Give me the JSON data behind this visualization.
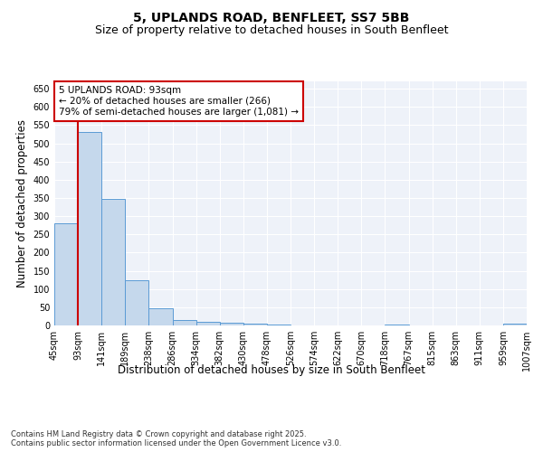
{
  "title": "5, UPLANDS ROAD, BENFLEET, SS7 5BB",
  "subtitle": "Size of property relative to detached houses in South Benfleet",
  "xlabel": "Distribution of detached houses by size in South Benfleet",
  "ylabel": "Number of detached properties",
  "bar_values": [
    280,
    530,
    348,
    125,
    48,
    15,
    10,
    8,
    5,
    3,
    0,
    0,
    0,
    0,
    3,
    0,
    0,
    0,
    0,
    4
  ],
  "bar_color": "#c5d8ec",
  "bar_edge_color": "#5b9bd5",
  "categories": [
    "45sqm",
    "93sqm",
    "141sqm",
    "189sqm",
    "238sqm",
    "286sqm",
    "334sqm",
    "382sqm",
    "430sqm",
    "478sqm",
    "526sqm",
    "574sqm",
    "622sqm",
    "670sqm",
    "718sqm",
    "767sqm",
    "815sqm",
    "863sqm",
    "911sqm",
    "959sqm",
    "1007sqm"
  ],
  "ylim": [
    0,
    670
  ],
  "yticks": [
    0,
    50,
    100,
    150,
    200,
    250,
    300,
    350,
    400,
    450,
    500,
    550,
    600,
    650
  ],
  "property_line_x": 0.5,
  "annotation_text": "5 UPLANDS ROAD: 93sqm\n← 20% of detached houses are smaller (266)\n79% of semi-detached houses are larger (1,081) →",
  "annotation_box_color": "#ffffff",
  "annotation_box_edge": "#cc0000",
  "line_color": "#cc0000",
  "background_color": "#eef2f9",
  "grid_color": "#ffffff",
  "footer": "Contains HM Land Registry data © Crown copyright and database right 2025.\nContains public sector information licensed under the Open Government Licence v3.0.",
  "title_fontsize": 10,
  "subtitle_fontsize": 9,
  "axis_label_fontsize": 8.5,
  "tick_fontsize": 7,
  "annotation_fontsize": 7.5,
  "footer_fontsize": 6
}
